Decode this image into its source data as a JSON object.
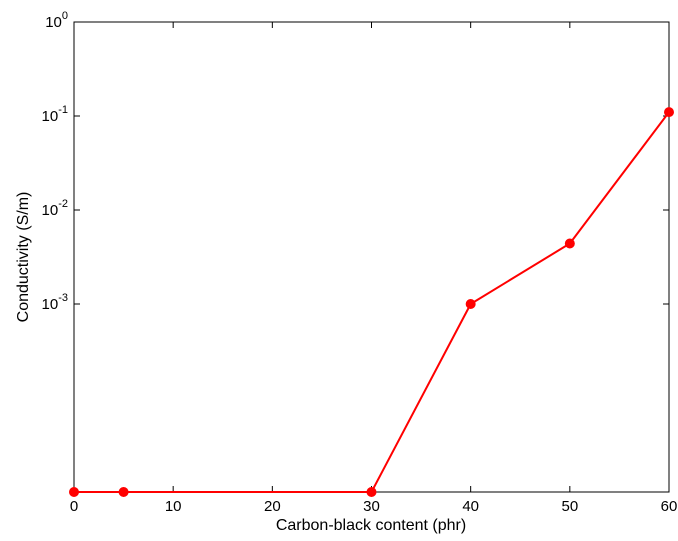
{
  "chart_data": {
    "type": "line",
    "title": "",
    "xlabel": "Carbon-black content (phr)",
    "ylabel": "Conductivity (S/m)",
    "x_scale": "linear",
    "y_scale": "log",
    "xlim": [
      0,
      60
    ],
    "ylim": [
      1e-05,
      1
    ],
    "grid": false,
    "x_ticks": [
      "0",
      "10",
      "20",
      "30",
      "40",
      "50",
      "60"
    ],
    "y_ticks": [
      {
        "base": "10",
        "exp": "0",
        "value": 1
      },
      {
        "base": "10",
        "exp": "-1",
        "value": 0.1
      },
      {
        "base": "10",
        "exp": "-2",
        "value": 0.01
      },
      {
        "base": "10",
        "exp": "-3",
        "value": 0.001
      }
    ],
    "series": [
      {
        "color": "#ff0000",
        "marker": "circle",
        "x": [
          0,
          5,
          30,
          40,
          50,
          60
        ],
        "y": [
          1e-05,
          1e-05,
          1e-05,
          0.001,
          0.0044,
          0.11
        ]
      }
    ]
  }
}
